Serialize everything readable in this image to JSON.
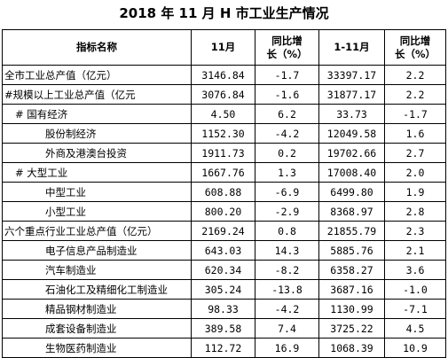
{
  "title": "2018 年 11 月 H 市工业生产情况",
  "headers": {
    "name": "指标名称",
    "month": "11月",
    "yoy_line1": "同比增",
    "yoy_line2": "长（%）",
    "cumulative": "1-11月",
    "yoy2_line1": "同比增",
    "yoy2_line2": "长（%）"
  },
  "rows": [
    {
      "name": "全市工业总产值（亿元）",
      "month": "3146.84",
      "yoy": "-1.7",
      "cum": "33397.17",
      "cum_yoy": "2.2"
    },
    {
      "name": "#规模以上工业总产值（亿元",
      "month": "3076.84",
      "yoy": "-1.6",
      "cum": "31877.17",
      "cum_yoy": "2.2"
    },
    {
      "name": "#  国有经济",
      "month": "4.50",
      "yoy": "6.2",
      "cum": "33.73",
      "cum_yoy": "-1.7"
    },
    {
      "name": "股份制经济",
      "month": "1152.30",
      "yoy": "-4.2",
      "cum": "12049.58",
      "cum_yoy": "1.6"
    },
    {
      "name": "外商及港澳台投资",
      "month": "1911.73",
      "yoy": "0.2",
      "cum": "19702.66",
      "cum_yoy": "2.7"
    },
    {
      "name": "#  大型工业",
      "month": "1667.76",
      "yoy": "1.3",
      "cum": "17008.40",
      "cum_yoy": "2.0"
    },
    {
      "name": "中型工业",
      "month": "608.88",
      "yoy": "-6.9",
      "cum": "6499.80",
      "cum_yoy": "1.9"
    },
    {
      "name": "小型工业",
      "month": "800.20",
      "yoy": "-2.9",
      "cum": "8368.97",
      "cum_yoy": "2.8"
    },
    {
      "name": "六个重点行业工业总产值（亿元）",
      "month": "2169.24",
      "yoy": "0.8",
      "cum": "21855.79",
      "cum_yoy": "2.3"
    },
    {
      "name": "电子信息产品制造业",
      "month": "643.03",
      "yoy": "14.3",
      "cum": "5885.76",
      "cum_yoy": "2.1"
    },
    {
      "name": "汽车制造业",
      "month": "620.34",
      "yoy": "-8.2",
      "cum": "6358.27",
      "cum_yoy": "3.6"
    },
    {
      "name": "石油化工及精细化工制造业",
      "month": "305.24",
      "yoy": "-13.8",
      "cum": "3687.16",
      "cum_yoy": "-1.0"
    },
    {
      "name": "精品钢材制造业",
      "month": "98.33",
      "yoy": "-4.2",
      "cum": "1130.99",
      "cum_yoy": "-7.1"
    },
    {
      "name": "成套设备制造业",
      "month": "389.58",
      "yoy": "7.4",
      "cum": "3725.22",
      "cum_yoy": "4.5"
    },
    {
      "name": "生物医药制造业",
      "month": "112.72",
      "yoy": "16.9",
      "cum": "1068.39",
      "cum_yoy": "10.9"
    }
  ]
}
